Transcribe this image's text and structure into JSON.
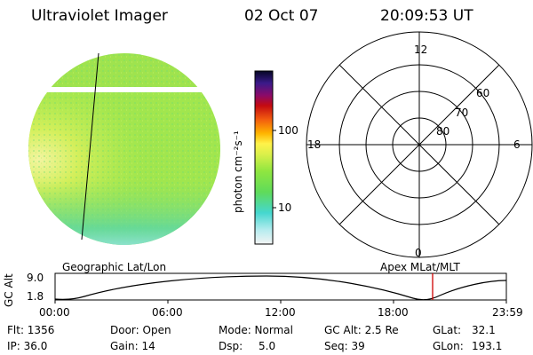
{
  "header": {
    "instrument": "Ultraviolet Imager",
    "date": "02 Oct 07",
    "time": "20:09:53 UT"
  },
  "colorbar": {
    "unit_label": "photon cm⁻²s⁻¹",
    "ticks": [
      "100",
      "10"
    ]
  },
  "polar_plot": {
    "mlt_labels": {
      "top": "12",
      "left": "18",
      "right": "6",
      "bottom": "0"
    },
    "lat_labels": [
      "60",
      "70",
      "80"
    ]
  },
  "altitude_strip": {
    "ylabel": "GC Alt",
    "yticks": [
      "9.0",
      "1.8"
    ],
    "left_caption": "Geographic Lat/Lon",
    "right_caption": "Apex MLat/MLT",
    "time_ticks": [
      "00:00",
      "06:00",
      "12:00",
      "18:00",
      "23:59"
    ],
    "current_time_marker": "20:09:53"
  },
  "footer": {
    "flt": "Flt: 1356",
    "ip": "IP: 36.0",
    "door": "Door: Open",
    "gain": "Gain: 14",
    "mode": "Mode: Normal",
    "dsp": "Dsp:",
    "dsp_value": "5.0",
    "gc_alt": "GC Alt: 2.5 Re",
    "seq": "Seq: 39",
    "glat": "GLat:",
    "glat_value": "32.1",
    "glon": "GLon:",
    "glon_value": "193.1"
  }
}
